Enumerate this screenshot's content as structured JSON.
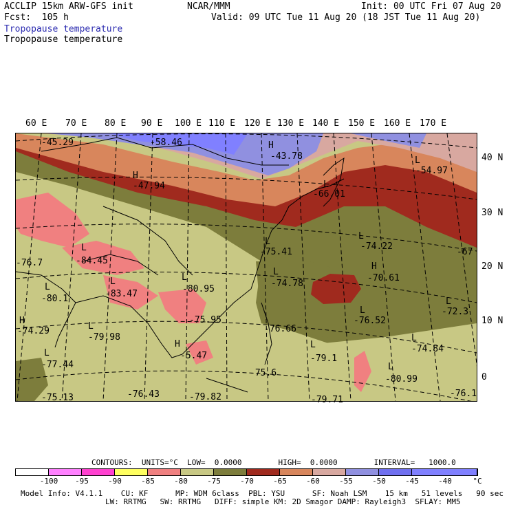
{
  "header": {
    "model": "ACCLIP 15km ARW-GFS init",
    "org": "NCAR/MMM",
    "init": "Init: 00 UTC Fri 07 Aug 20",
    "fcst": "Fcst:  105 h",
    "valid": "Valid: 09 UTC Tue 11 Aug 20 (18 JST Tue 11 Aug 20)",
    "field_title_blue": "Tropopause temperature",
    "field_title_black": "Tropopause temperature"
  },
  "map": {
    "lon_labels": [
      "60 E",
      "70 E",
      "80 E",
      "90 E",
      "100 E",
      "110 E",
      "120 E",
      "130 E",
      "140 E",
      "150 E",
      "160 E",
      "170 E"
    ],
    "lat_labels": [
      "40 N",
      "30 N",
      "20 N",
      "10 N",
      "0"
    ],
    "highs": [
      "H",
      "H",
      "H",
      "H",
      "H"
    ],
    "values": [
      "-45.29",
      "-58.46",
      "-43.78",
      "-47.94",
      "-54.97",
      "-66.01",
      "-84.45",
      "-75.41",
      "-74.22",
      "-76.7",
      "-80.95",
      "-70.61",
      "-67",
      "-80.1",
      "-83.47",
      "-74.78",
      "-72.3",
      "-75.95",
      "-76.52",
      "-74.29",
      "-79.98",
      "-76.66",
      "-74.84",
      "-5.47",
      "-79.1",
      "-77.44",
      "-75.6",
      "-80.99",
      "-75.13",
      "-76.43",
      "-79.82",
      "-79.71",
      "-76.1"
    ],
    "lows": [
      "L",
      "L",
      "L",
      "L",
      "L",
      "L",
      "L",
      "L",
      "L",
      "L",
      "L",
      "L",
      "L",
      "L",
      "L",
      "L"
    ]
  },
  "footer": {
    "contours": "CONTOURS:  UNITS=°C  LOW=  0.0000        HIGH=  0.0000        INTERVAL=   1000.0",
    "line1": "Model Info: V4.1.1    CU: KF      MP: WDM 6class  PBL: YSU      SF: Noah LSM    15 km   51 levels   90 sec",
    "line2": "LW: RRTMG   SW: RRTMG   DIFF: simple KM: 2D Smagor DAMP: Rayleigh3  SFLAY: MM5"
  },
  "colorbar": {
    "labels": [
      "-100",
      "-95",
      "-90",
      "-85",
      "-80",
      "-75",
      "-70",
      "-65",
      "-60",
      "-55",
      "-50",
      "-45",
      "-40",
      "°C"
    ],
    "colors": [
      "#ffffff",
      "#ff80ff",
      "#ff40d0",
      "#ffff60",
      "#f08080",
      "#c8c884",
      "#7d7d3c",
      "#a02a1e",
      "#d8865c",
      "#d8a8a0",
      "#9090e0",
      "#7070f0",
      "#8080ff"
    ]
  }
}
